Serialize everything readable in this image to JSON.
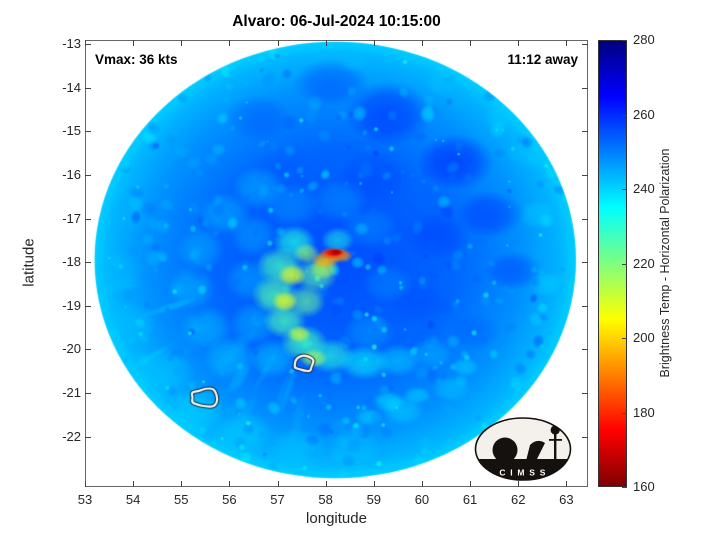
{
  "title": "Alvaro: 06-Jul-2024 10:15:00",
  "annotations": {
    "vmax": "Vmax: 36 kts",
    "time_away": "11:12 away"
  },
  "axes": {
    "xlabel": "longitude",
    "ylabel": "latitude",
    "x_ticks": [
      53,
      54,
      55,
      56,
      57,
      58,
      59,
      60,
      61,
      62,
      63
    ],
    "y_ticks": [
      -13,
      -14,
      -15,
      -16,
      -17,
      -18,
      -19,
      -20,
      -21,
      -22
    ]
  },
  "colorbar": {
    "label": "Brightness Temp - Horizontal Polarization",
    "ticks": [
      160,
      180,
      200,
      220,
      240,
      260,
      280
    ],
    "min": 160,
    "max": 280
  },
  "logo": {
    "text": "C I M S S"
  },
  "chart_data": {
    "type": "heatmap",
    "title": "Alvaro: 06-Jul-2024 10:15:00",
    "xlabel": "longitude",
    "ylabel": "latitude",
    "xlim": [
      53,
      63.45
    ],
    "ylim": [
      -23.15,
      -12.91
    ],
    "colorbar_label": "Brightness Temp - Horizontal Polarization",
    "value_range_k": [
      160,
      280
    ],
    "colormap": "jet-reversed (160=dark red, 200=yellow, 240=cyan, 280=dark blue)",
    "storm": {
      "name": "Alvaro",
      "time": "06-Jul-2024 10:15:00",
      "vmax_kts": 36,
      "forecast_note": "11:12 away",
      "eye_hotspot": {
        "lon": 58.2,
        "lat": -17.8,
        "min_temp_k": 163
      }
    },
    "swath": {
      "center_lon": 58.2,
      "center_lat": -17.95,
      "radius_deg": 5.0,
      "background_temp_k": 253,
      "edge_temp_k": 241
    },
    "features_format": [
      "lon",
      "lat",
      "radius_lon_deg",
      "radius_lat_deg",
      "brightness_temp_k",
      "opacity"
    ],
    "env_features": [
      [
        59.3,
        -14.6,
        0.9,
        0.75,
        262,
        0.5
      ],
      [
        60.7,
        -15.7,
        0.8,
        0.65,
        263,
        0.5
      ],
      [
        61.4,
        -16.9,
        0.7,
        0.55,
        261,
        0.45
      ],
      [
        58.1,
        -13.9,
        0.8,
        0.55,
        259,
        0.4
      ],
      [
        56.6,
        -14.7,
        0.7,
        0.55,
        257,
        0.35
      ],
      [
        60.3,
        -17.4,
        0.7,
        0.55,
        259,
        0.4
      ],
      [
        61.9,
        -18.2,
        0.6,
        0.45,
        260,
        0.4
      ],
      [
        59.9,
        -18.9,
        0.65,
        0.5,
        257,
        0.35
      ],
      [
        61.1,
        -19.6,
        0.55,
        0.45,
        256,
        0.3
      ],
      [
        59.0,
        -16.1,
        0.8,
        0.65,
        258,
        0.35
      ],
      [
        57.1,
        -15.9,
        0.7,
        0.55,
        255,
        0.3
      ],
      [
        59.6,
        -17.6,
        0.5,
        0.4,
        254,
        0.3
      ],
      [
        56.6,
        -16.3,
        0.55,
        0.5,
        243,
        0.5
      ],
      [
        55.9,
        -16.9,
        0.55,
        0.5,
        243,
        0.5
      ],
      [
        55.4,
        -17.7,
        0.5,
        0.5,
        244,
        0.5
      ],
      [
        55.2,
        -18.6,
        0.5,
        0.5,
        243,
        0.5
      ],
      [
        55.5,
        -19.5,
        0.55,
        0.5,
        242,
        0.5
      ],
      [
        56.0,
        -20.2,
        0.55,
        0.5,
        241,
        0.5
      ],
      [
        54.6,
        -20.5,
        0.7,
        0.55,
        241,
        0.5
      ],
      [
        55.3,
        -21.4,
        0.6,
        0.5,
        240,
        0.55
      ],
      [
        56.3,
        -21.9,
        0.6,
        0.5,
        240,
        0.5
      ],
      [
        57.4,
        -22.3,
        0.6,
        0.5,
        241,
        0.45
      ],
      [
        58.6,
        -22.25,
        0.55,
        0.45,
        241,
        0.4
      ],
      [
        53.9,
        -19.4,
        0.6,
        0.5,
        242,
        0.45
      ],
      [
        53.7,
        -18.2,
        0.5,
        0.5,
        243,
        0.4
      ],
      [
        53.9,
        -16.9,
        0.5,
        0.45,
        244,
        0.35
      ],
      [
        62.4,
        -16.9,
        0.4,
        0.35,
        241,
        0.5
      ],
      [
        62.1,
        -15.5,
        0.35,
        0.3,
        242,
        0.45
      ],
      [
        61.6,
        -14.7,
        0.3,
        0.28,
        241,
        0.45
      ],
      [
        60.4,
        -13.9,
        0.35,
        0.3,
        242,
        0.45
      ],
      [
        58.6,
        -13.4,
        0.3,
        0.25,
        243,
        0.5
      ],
      [
        59.6,
        -21.4,
        0.45,
        0.35,
        239,
        0.5
      ],
      [
        60.6,
        -20.9,
        0.4,
        0.3,
        240,
        0.45
      ],
      [
        62.6,
        -18.5,
        0.35,
        0.3,
        240,
        0.5
      ],
      [
        59.3,
        -21.2,
        0.35,
        0.25,
        237,
        0.55
      ],
      [
        59.9,
        -21.05,
        0.3,
        0.2,
        238,
        0.5
      ],
      [
        58.9,
        -21.55,
        0.3,
        0.2,
        238,
        0.5
      ],
      [
        60.9,
        -20.4,
        0.3,
        0.22,
        239,
        0.5
      ],
      [
        58.9,
        -17.2,
        0.6,
        0.5,
        247,
        0.4
      ],
      [
        58.3,
        -16.6,
        0.6,
        0.5,
        246,
        0.4
      ],
      [
        57.3,
        -16.7,
        0.6,
        0.5,
        245,
        0.4
      ],
      [
        56.5,
        -17.4,
        0.5,
        0.5,
        244,
        0.45
      ],
      [
        56.4,
        -18.4,
        0.5,
        0.5,
        243,
        0.45
      ],
      [
        56.5,
        -19.4,
        0.5,
        0.5,
        242,
        0.45
      ],
      [
        56.9,
        -20.2,
        0.5,
        0.45,
        240,
        0.5
      ],
      [
        58.9,
        -19.6,
        0.55,
        0.45,
        244,
        0.4
      ],
      [
        59.3,
        -18.5,
        0.55,
        0.45,
        246,
        0.35
      ]
    ],
    "core_features": [
      [
        57.35,
        -17.55,
        0.45,
        0.4,
        231,
        0.7
      ],
      [
        57.05,
        -18.1,
        0.5,
        0.45,
        227,
        0.75
      ],
      [
        56.95,
        -18.75,
        0.5,
        0.45,
        225,
        0.75
      ],
      [
        57.15,
        -19.35,
        0.45,
        0.4,
        226,
        0.75
      ],
      [
        57.55,
        -19.85,
        0.5,
        0.42,
        227,
        0.75
      ],
      [
        58.1,
        -20.15,
        0.5,
        0.4,
        230,
        0.65
      ],
      [
        58.8,
        -20.3,
        0.55,
        0.4,
        234,
        0.6
      ],
      [
        59.5,
        -20.25,
        0.5,
        0.38,
        238,
        0.5
      ],
      [
        60.2,
        -20.1,
        0.45,
        0.35,
        241,
        0.4
      ],
      [
        58.25,
        -17.5,
        0.35,
        0.3,
        231,
        0.55
      ],
      [
        57.8,
        -18.3,
        0.45,
        0.4,
        223,
        0.65
      ],
      [
        57.6,
        -18.9,
        0.4,
        0.38,
        222,
        0.65
      ],
      [
        57.3,
        -18.3,
        0.3,
        0.26,
        209,
        0.8
      ],
      [
        57.15,
        -18.9,
        0.27,
        0.24,
        208,
        0.8
      ],
      [
        57.45,
        -19.65,
        0.25,
        0.2,
        211,
        0.75
      ],
      [
        57.75,
        -20.2,
        0.3,
        0.22,
        215,
        0.7
      ],
      [
        57.95,
        -18.15,
        0.3,
        0.25,
        213,
        0.65
      ],
      [
        57.6,
        -17.8,
        0.28,
        0.24,
        217,
        0.65
      ],
      [
        58.0,
        -17.95,
        0.3,
        0.2,
        196,
        0.85
      ],
      [
        58.3,
        -17.85,
        0.28,
        0.16,
        192,
        0.85
      ],
      [
        58.15,
        -17.8,
        0.3,
        0.14,
        183,
        0.95
      ],
      [
        58.18,
        -17.78,
        0.2,
        0.1,
        172,
        1
      ],
      [
        58.22,
        -17.77,
        0.12,
        0.065,
        163,
        1
      ]
    ],
    "contours": [
      {
        "lon": 57.55,
        "lat": -20.33,
        "r_lon": 0.22,
        "r_lat": 0.17
      },
      {
        "lon": 55.5,
        "lat": -21.1,
        "r_lon": 0.3,
        "r_lat": 0.21
      }
    ]
  }
}
